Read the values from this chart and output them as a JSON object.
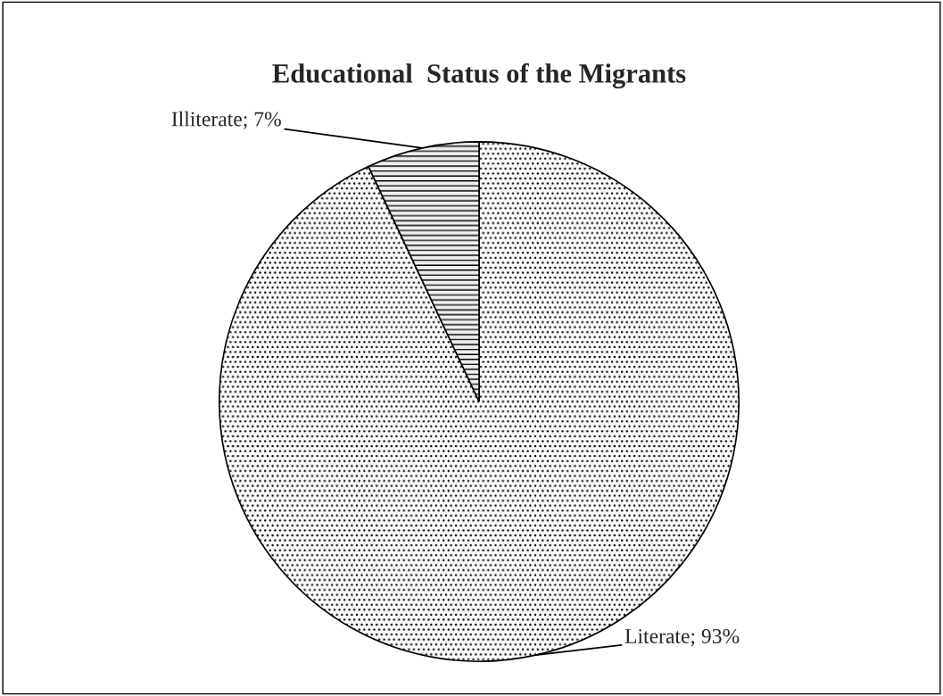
{
  "chart_data": {
    "type": "pie",
    "title": "Educational  Status of the Migrants",
    "categories": [
      "Literate",
      "Illiterate"
    ],
    "values": [
      93,
      7
    ],
    "value_labels": [
      "93%",
      "7%"
    ],
    "colors": [
      "#fbfbfb",
      "#efefef"
    ],
    "legend": false
  }
}
